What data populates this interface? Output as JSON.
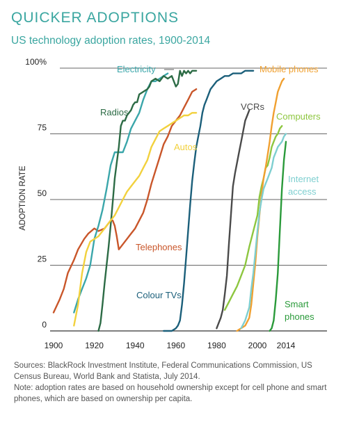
{
  "header": {
    "title": "QUICKER ADOPTIONS",
    "subtitle": "US technology adoption rates, 1900-2014"
  },
  "notes": {
    "sources": "Sources: BlackRock Investment Institute, Federal Communications Commission, US Census Bureau, World Bank and Statista, July 2014.",
    "note": "Note: adoption rates are based on household ownership except for cell phone and smart phones, which are based on ownership per capita."
  },
  "chart_data": {
    "type": "line",
    "title": "QUICKER ADOPTIONS",
    "subtitle": "US technology adoption rates, 1900-2014",
    "xlabel": "",
    "ylabel": "ADOPTION RATE",
    "xlim": [
      1900,
      2035
    ],
    "ylim": [
      0,
      100
    ],
    "x_ticks": [
      1900,
      1920,
      1940,
      1960,
      1980,
      2000,
      2014
    ],
    "x_tick_labels": [
      "1900",
      "1920",
      "1940",
      "1960",
      "1980",
      "2000",
      "2014"
    ],
    "y_ticks": [
      0,
      25,
      50,
      75,
      100
    ],
    "y_tick_labels": [
      "0",
      "25",
      "50",
      "75",
      "100%"
    ],
    "grid": "horizontal",
    "series": [
      {
        "name": "Telephones",
        "color": "#c9562a",
        "points": [
          [
            1900,
            7
          ],
          [
            1903,
            12
          ],
          [
            1905,
            16
          ],
          [
            1907,
            22
          ],
          [
            1910,
            27
          ],
          [
            1912,
            31
          ],
          [
            1915,
            35
          ],
          [
            1917,
            37
          ],
          [
            1920,
            39
          ],
          [
            1922,
            38
          ],
          [
            1925,
            39
          ],
          [
            1928,
            42
          ],
          [
            1929,
            42
          ],
          [
            1930,
            40
          ],
          [
            1931,
            36
          ],
          [
            1932,
            31
          ],
          [
            1934,
            33
          ],
          [
            1936,
            35
          ],
          [
            1938,
            37
          ],
          [
            1940,
            39
          ],
          [
            1942,
            42
          ],
          [
            1944,
            45
          ],
          [
            1946,
            50
          ],
          [
            1948,
            56
          ],
          [
            1950,
            61
          ],
          [
            1952,
            66
          ],
          [
            1954,
            71
          ],
          [
            1956,
            74
          ],
          [
            1958,
            78
          ],
          [
            1960,
            80
          ],
          [
            1962,
            82
          ],
          [
            1964,
            85
          ],
          [
            1966,
            88
          ],
          [
            1968,
            91
          ],
          [
            1970,
            92
          ]
        ],
        "label": "Telephones"
      },
      {
        "name": "Electricity",
        "color": "#3aa6aa",
        "points": [
          [
            1910,
            7
          ],
          [
            1912,
            12
          ],
          [
            1914,
            16
          ],
          [
            1916,
            20
          ],
          [
            1918,
            25
          ],
          [
            1920,
            35
          ],
          [
            1922,
            40
          ],
          [
            1924,
            46
          ],
          [
            1926,
            54
          ],
          [
            1928,
            63
          ],
          [
            1930,
            68
          ],
          [
            1932,
            68
          ],
          [
            1934,
            68
          ],
          [
            1936,
            72
          ],
          [
            1938,
            77
          ],
          [
            1940,
            80
          ],
          [
            1942,
            83
          ],
          [
            1944,
            88
          ],
          [
            1946,
            92
          ],
          [
            1948,
            95
          ],
          [
            1950,
            95
          ],
          [
            1952,
            96
          ],
          [
            1954,
            97
          ],
          [
            1956,
            98
          ]
        ],
        "label": "Electricity"
      },
      {
        "name": "Radios",
        "color": "#2c6b45",
        "points": [
          [
            1922,
            0
          ],
          [
            1923,
            3
          ],
          [
            1924,
            10
          ],
          [
            1925,
            18
          ],
          [
            1926,
            25
          ],
          [
            1927,
            32
          ],
          [
            1928,
            40
          ],
          [
            1929,
            49
          ],
          [
            1930,
            58
          ],
          [
            1931,
            64
          ],
          [
            1932,
            70
          ],
          [
            1933,
            78
          ],
          [
            1934,
            80
          ],
          [
            1935,
            80
          ],
          [
            1936,
            82
          ],
          [
            1937,
            83
          ],
          [
            1938,
            84
          ],
          [
            1939,
            86
          ],
          [
            1940,
            87
          ],
          [
            1941,
            87
          ],
          [
            1942,
            90
          ],
          [
            1944,
            91
          ],
          [
            1946,
            92
          ],
          [
            1947,
            93
          ],
          [
            1948,
            95
          ],
          [
            1950,
            96
          ],
          [
            1952,
            95
          ],
          [
            1954,
            97
          ],
          [
            1956,
            96
          ],
          [
            1958,
            97
          ],
          [
            1960,
            93
          ],
          [
            1961,
            94
          ],
          [
            1962,
            99
          ],
          [
            1963,
            97
          ],
          [
            1964,
            99
          ],
          [
            1965,
            98
          ],
          [
            1966,
            99
          ],
          [
            1967,
            98
          ],
          [
            1968,
            99
          ],
          [
            1970,
            99
          ]
        ],
        "label": "Radios"
      },
      {
        "name": "Autos",
        "color": "#f2d13d",
        "points": [
          [
            1910,
            2
          ],
          [
            1912,
            10
          ],
          [
            1914,
            22
          ],
          [
            1916,
            30
          ],
          [
            1918,
            34
          ],
          [
            1920,
            35
          ],
          [
            1922,
            36
          ],
          [
            1925,
            39
          ],
          [
            1928,
            42
          ],
          [
            1930,
            44
          ],
          [
            1932,
            47
          ],
          [
            1934,
            50
          ],
          [
            1936,
            53
          ],
          [
            1938,
            55
          ],
          [
            1940,
            57
          ],
          [
            1942,
            59
          ],
          [
            1944,
            62
          ],
          [
            1946,
            65
          ],
          [
            1948,
            70
          ],
          [
            1950,
            73
          ],
          [
            1952,
            76
          ],
          [
            1954,
            77
          ],
          [
            1956,
            78
          ],
          [
            1958,
            79
          ],
          [
            1960,
            80
          ],
          [
            1962,
            81
          ],
          [
            1964,
            82
          ],
          [
            1966,
            82
          ],
          [
            1968,
            83
          ],
          [
            1970,
            83
          ]
        ],
        "label": "Autos"
      },
      {
        "name": "Colour TVs",
        "color": "#1b5f7a",
        "points": [
          [
            1954,
            0
          ],
          [
            1958,
            0
          ],
          [
            1960,
            1
          ],
          [
            1961,
            2
          ],
          [
            1962,
            4
          ],
          [
            1963,
            10
          ],
          [
            1964,
            18
          ],
          [
            1965,
            28
          ],
          [
            1966,
            38
          ],
          [
            1967,
            48
          ],
          [
            1968,
            57
          ],
          [
            1969,
            64
          ],
          [
            1970,
            70
          ],
          [
            1971,
            74
          ],
          [
            1972,
            78
          ],
          [
            1973,
            83
          ],
          [
            1974,
            86
          ],
          [
            1975,
            88
          ],
          [
            1976,
            90
          ],
          [
            1977,
            92
          ],
          [
            1978,
            93
          ],
          [
            1980,
            95
          ],
          [
            1982,
            96
          ],
          [
            1984,
            97
          ],
          [
            1986,
            97
          ],
          [
            1988,
            98
          ],
          [
            1990,
            98
          ],
          [
            1992,
            98
          ],
          [
            1994,
            99
          ],
          [
            1996,
            99
          ],
          [
            1998,
            99
          ]
        ],
        "label": "Colour TVs"
      },
      {
        "name": "VCRs",
        "color": "#4a4a4a",
        "points": [
          [
            1980,
            1
          ],
          [
            1981,
            3
          ],
          [
            1982,
            5
          ],
          [
            1983,
            8
          ],
          [
            1984,
            14
          ],
          [
            1985,
            21
          ],
          [
            1986,
            33
          ],
          [
            1987,
            44
          ],
          [
            1988,
            55
          ],
          [
            1989,
            60
          ],
          [
            1990,
            64
          ],
          [
            1991,
            68
          ],
          [
            1992,
            72
          ],
          [
            1993,
            76
          ],
          [
            1994,
            80
          ],
          [
            1995,
            82
          ],
          [
            1996,
            84
          ]
        ],
        "label": "VCRs"
      },
      {
        "name": "Computers",
        "color": "#8dc63f",
        "points": [
          [
            1984,
            8
          ],
          [
            1986,
            11
          ],
          [
            1988,
            14
          ],
          [
            1990,
            17
          ],
          [
            1992,
            21
          ],
          [
            1994,
            25
          ],
          [
            1996,
            32
          ],
          [
            1998,
            38
          ],
          [
            2000,
            44
          ],
          [
            2001,
            51
          ],
          [
            2002,
            55
          ],
          [
            2003,
            58
          ],
          [
            2004,
            62
          ],
          [
            2005,
            63
          ],
          [
            2006,
            66
          ],
          [
            2007,
            70
          ],
          [
            2008,
            72
          ],
          [
            2009,
            74
          ],
          [
            2010,
            75
          ],
          [
            2011,
            77
          ],
          [
            2012,
            78
          ]
        ],
        "label": "Computers"
      },
      {
        "name": "Mobile phones",
        "color": "#f0a030",
        "points": [
          [
            1990,
            0
          ],
          [
            1994,
            2
          ],
          [
            1996,
            5
          ],
          [
            1997,
            10
          ],
          [
            1998,
            18
          ],
          [
            1999,
            26
          ],
          [
            2000,
            36
          ],
          [
            2001,
            44
          ],
          [
            2002,
            52
          ],
          [
            2003,
            58
          ],
          [
            2004,
            62
          ],
          [
            2005,
            67
          ],
          [
            2006,
            72
          ],
          [
            2007,
            78
          ],
          [
            2008,
            83
          ],
          [
            2009,
            87
          ],
          [
            2010,
            91
          ],
          [
            2011,
            93
          ],
          [
            2012,
            95
          ],
          [
            2013,
            96
          ]
        ],
        "label": "Mobile phones"
      },
      {
        "name": "Internet access",
        "color": "#7ecfd0",
        "points": [
          [
            1992,
            1
          ],
          [
            1994,
            4
          ],
          [
            1996,
            9
          ],
          [
            1997,
            16
          ],
          [
            1998,
            22
          ],
          [
            1999,
            30
          ],
          [
            2000,
            38
          ],
          [
            2001,
            45
          ],
          [
            2002,
            50
          ],
          [
            2003,
            54
          ],
          [
            2004,
            56
          ],
          [
            2005,
            58
          ],
          [
            2006,
            60
          ],
          [
            2007,
            62
          ],
          [
            2008,
            66
          ],
          [
            2009,
            68
          ],
          [
            2010,
            70
          ],
          [
            2011,
            71
          ],
          [
            2012,
            72
          ],
          [
            2013,
            74
          ],
          [
            2014,
            75
          ]
        ],
        "label": "Internet access"
      },
      {
        "name": "Smart phones",
        "color": "#2a9a3a",
        "points": [
          [
            2006,
            0
          ],
          [
            2007,
            1
          ],
          [
            2008,
            4
          ],
          [
            2009,
            12
          ],
          [
            2010,
            22
          ],
          [
            2011,
            38
          ],
          [
            2012,
            54
          ],
          [
            2013,
            65
          ],
          [
            2014,
            72
          ]
        ],
        "label": "Smart phones"
      }
    ]
  }
}
